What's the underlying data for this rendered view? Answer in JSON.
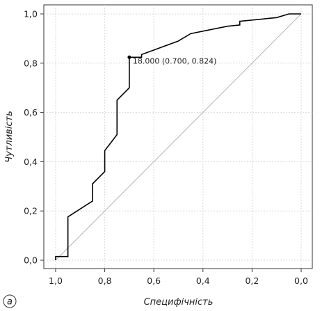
{
  "chart_data": {
    "type": "line",
    "title": "",
    "xlabel": "Специфічність",
    "ylabel": "Чутливість",
    "xlim": [
      1.0,
      0.0
    ],
    "ylim": [
      0.0,
      1.0
    ],
    "x_reversed": true,
    "grid": true,
    "x_ticks": [
      1.0,
      0.8,
      0.6,
      0.4,
      0.2,
      0.0
    ],
    "y_ticks": [
      0.0,
      0.2,
      0.4,
      0.6,
      0.8,
      1.0
    ],
    "x_tick_labels": [
      "1,0",
      "0,8",
      "0,6",
      "0,4",
      "0,2",
      "0,0"
    ],
    "y_tick_labels": [
      "0,0",
      "0,2",
      "0,4",
      "0,6",
      "0,8",
      "1,0"
    ],
    "series": [
      {
        "values": [
          [
            1.0,
            0.0
          ],
          [
            1.0,
            0.015
          ],
          [
            0.95,
            0.015
          ],
          [
            0.95,
            0.176
          ],
          [
            0.85,
            0.24
          ],
          [
            0.85,
            0.31
          ],
          [
            0.8,
            0.36
          ],
          [
            0.8,
            0.445
          ],
          [
            0.75,
            0.51
          ],
          [
            0.75,
            0.65
          ],
          [
            0.7,
            0.7
          ],
          [
            0.7,
            0.824
          ],
          [
            0.65,
            0.824
          ],
          [
            0.65,
            0.835
          ],
          [
            0.5,
            0.89
          ],
          [
            0.45,
            0.92
          ],
          [
            0.3,
            0.95
          ],
          [
            0.25,
            0.955
          ],
          [
            0.25,
            0.97
          ],
          [
            0.1,
            0.985
          ],
          [
            0.05,
            1.0
          ],
          [
            0.0,
            1.0
          ]
        ],
        "color": "#000000"
      }
    ],
    "reference_line": {
      "from": [
        1.0,
        0.0
      ],
      "to": [
        0.0,
        1.0
      ],
      "color": "#b8b8b8"
    },
    "annotations": [
      {
        "text": "18.000 (0.700, 0.824)",
        "x": 0.7,
        "y": 0.824
      }
    ],
    "panel_label": "a"
  }
}
